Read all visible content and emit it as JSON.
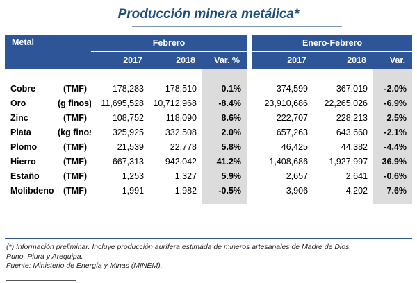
{
  "title": "Producción minera metálica*",
  "header": {
    "metal": "Metal",
    "group1": "Febrero",
    "group2": "Enero-Febrero",
    "cols": [
      "2017",
      "2018",
      "Var. %",
      "2017",
      "2018",
      "Var."
    ]
  },
  "rows": [
    {
      "name": "Cobre",
      "unit": "(TMF)",
      "feb2017": "178,283",
      "feb2018": "178,510",
      "feb_var": "0.1%",
      "ef2017": "374,599",
      "ef2018": "367,019",
      "ef_var": "-2.0%"
    },
    {
      "name": "Oro",
      "unit": "(g finos)",
      "feb2017": "11,695,528",
      "feb2018": "10,712,968",
      "feb_var": "-8.4%",
      "ef2017": "23,910,686",
      "ef2018": "22,265,026",
      "ef_var": "-6.9%"
    },
    {
      "name": "Zinc",
      "unit": "(TMF)",
      "feb2017": "108,752",
      "feb2018": "118,090",
      "feb_var": "8.6%",
      "ef2017": "222,707",
      "ef2018": "228,213",
      "ef_var": "2.5%"
    },
    {
      "name": "Plata",
      "unit": "(kg finos)",
      "feb2017": "325,925",
      "feb2018": "332,508",
      "feb_var": "2.0%",
      "ef2017": "657,263",
      "ef2018": "643,660",
      "ef_var": "-2.1%"
    },
    {
      "name": "Plomo",
      "unit": "(TMF)",
      "feb2017": "21,539",
      "feb2018": "22,778",
      "feb_var": "5.8%",
      "ef2017": "46,425",
      "ef2018": "44,382",
      "ef_var": "-4.4%"
    },
    {
      "name": "Hierro",
      "unit": "(TMF)",
      "feb2017": "667,313",
      "feb2018": "942,042",
      "feb_var": "41.2%",
      "ef2017": "1,408,686",
      "ef2018": "1,927,997",
      "ef_var": "36.9%"
    },
    {
      "name": "Estaño",
      "unit": "(TMF)",
      "feb2017": "1,253",
      "feb2018": "1,327",
      "feb_var": "5.9%",
      "ef2017": "2,657",
      "ef2018": "2,641",
      "ef_var": "-0.6%"
    },
    {
      "name": "Molibdeno",
      "unit": "(TMF)",
      "feb2017": "1,991",
      "feb2018": "1,982",
      "feb_var": "-0.5%",
      "ef2017": "3,906",
      "ef2018": "4,202",
      "ef_var": "7.6%"
    }
  ],
  "notes": {
    "line1": "(*) Información preliminar. Incluye producción aurífera estimada de mineros artesanales de Madre de Dios,",
    "line2": "Puno, Piura y Arequipa.",
    "source": "Fuente: Ministerio de Energía y Minas (MINEM)."
  }
}
